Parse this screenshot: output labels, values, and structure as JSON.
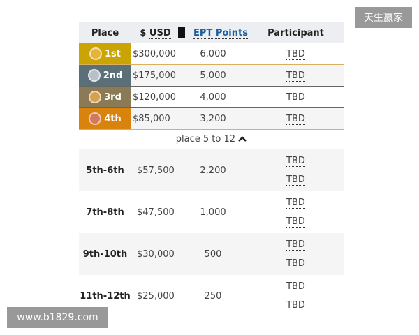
{
  "header": {
    "place": "Place",
    "usd_prefix": "$",
    "usd": "USD",
    "points": "EPT Points",
    "participant": "Participant"
  },
  "top": [
    {
      "place": "1st",
      "usd": "$300,000",
      "points": "6,000",
      "participant": "TBD",
      "color": "#c9a402",
      "medal": "#e8b33a",
      "border": "#d8b060"
    },
    {
      "place": "2nd",
      "usd": "$175,000",
      "points": "5,000",
      "participant": "TBD",
      "color": "#5b6f78",
      "medal": "#b8c0c8",
      "border": "#666"
    },
    {
      "place": "3rd",
      "usd": "$120,000",
      "points": "4,000",
      "participant": "TBD",
      "color": "#8b7a56",
      "medal": "#d9a050",
      "border": "#666"
    },
    {
      "place": "4th",
      "usd": "$85,000",
      "points": "3,200",
      "participant": "TBD",
      "color": "#d9820c",
      "medal": "#d47a5a",
      "border": "#d8b060"
    }
  ],
  "more": {
    "label": "place 5 to 12",
    "icon": "chevron-up-icon"
  },
  "groups": [
    {
      "place": "5th-6th",
      "usd": "$57,500",
      "points": "2,200",
      "participants": [
        "TBD",
        "TBD"
      ]
    },
    {
      "place": "7th-8th",
      "usd": "$47,500",
      "points": "1,000",
      "participants": [
        "TBD",
        "TBD"
      ]
    },
    {
      "place": "9th-10th",
      "usd": "$30,000",
      "points": "500",
      "participants": [
        "TBD",
        "TBD"
      ]
    },
    {
      "place": "11th-12th",
      "usd": "$25,000",
      "points": "250",
      "participants": [
        "TBD",
        "TBD"
      ]
    }
  ],
  "watermarks": {
    "top": "天生赢家",
    "bottom": "www.b1829.com"
  }
}
